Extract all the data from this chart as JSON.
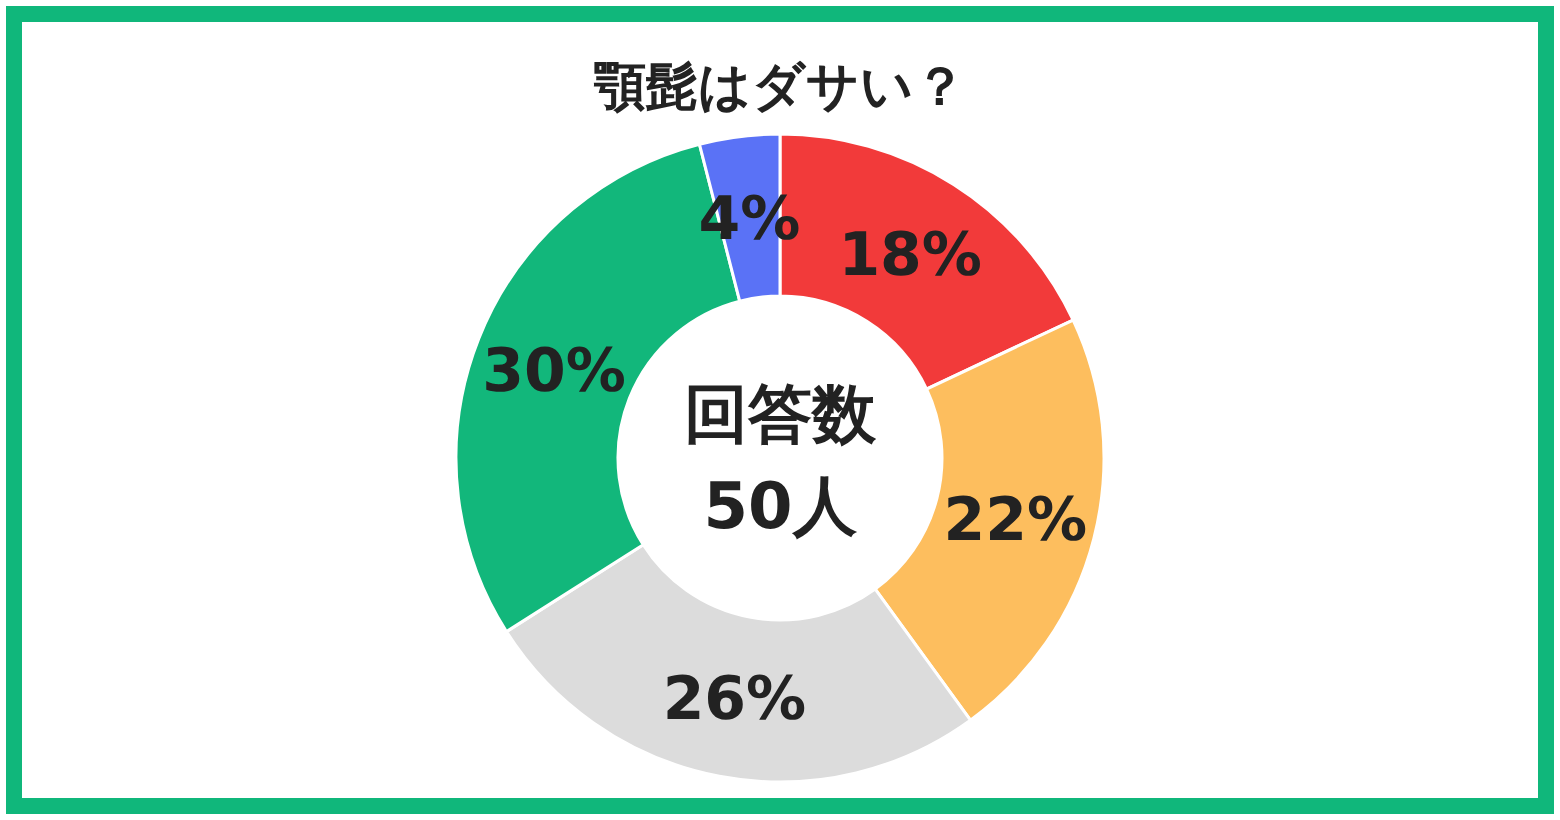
{
  "chart_data": {
    "type": "donut",
    "title": "顎髭はダサい？",
    "categories": [
      null,
      null,
      null,
      null,
      null
    ],
    "values": [
      18,
      22,
      26,
      30,
      4
    ],
    "colors": [
      "#f23a3a",
      "#fdbe5e",
      "#dcdcdc",
      "#12b77b",
      "#5a72f6"
    ],
    "value_labels": [
      "18%",
      "22%",
      "26%",
      "30%",
      "4%"
    ],
    "annotations": [
      "回答数",
      "50人"
    ]
  }
}
